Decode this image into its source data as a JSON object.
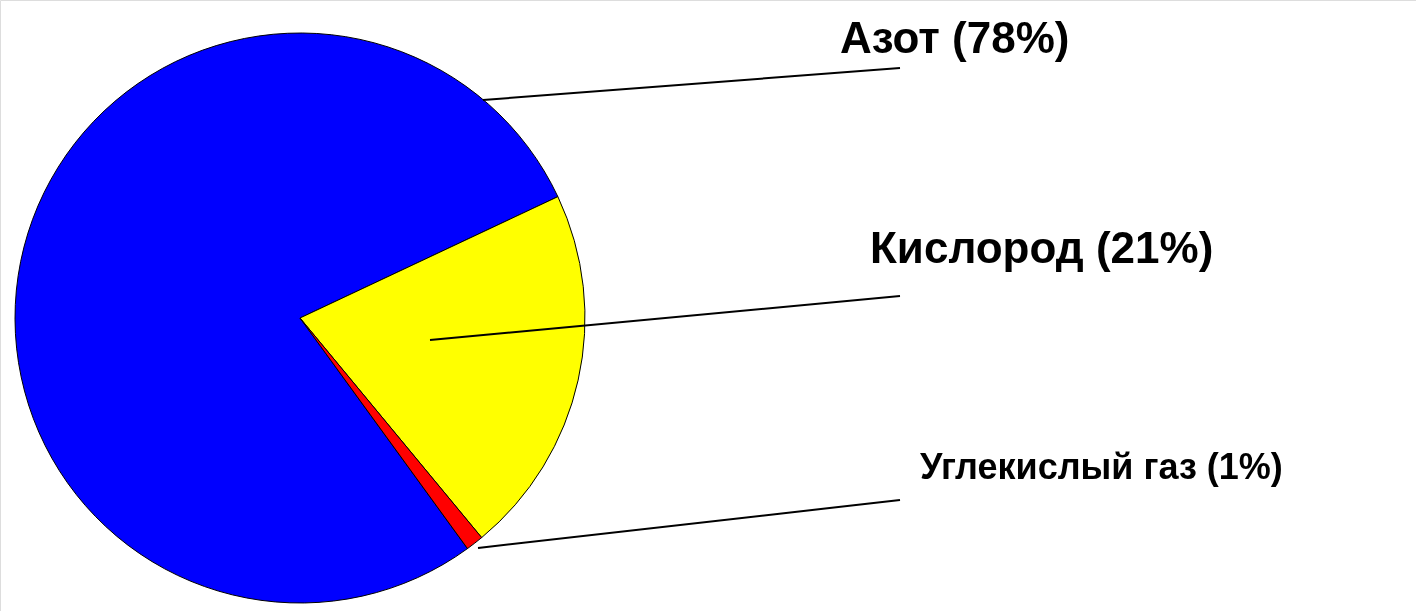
{
  "chart_data": {
    "type": "pie",
    "categories": [
      "Азот (78%)",
      "Кислород (21%)",
      "Углекислый газ (1%)"
    ],
    "values": [
      78,
      21,
      1
    ],
    "colors": [
      "#0000ff",
      "#ffff00",
      "#ff0000"
    ]
  }
}
